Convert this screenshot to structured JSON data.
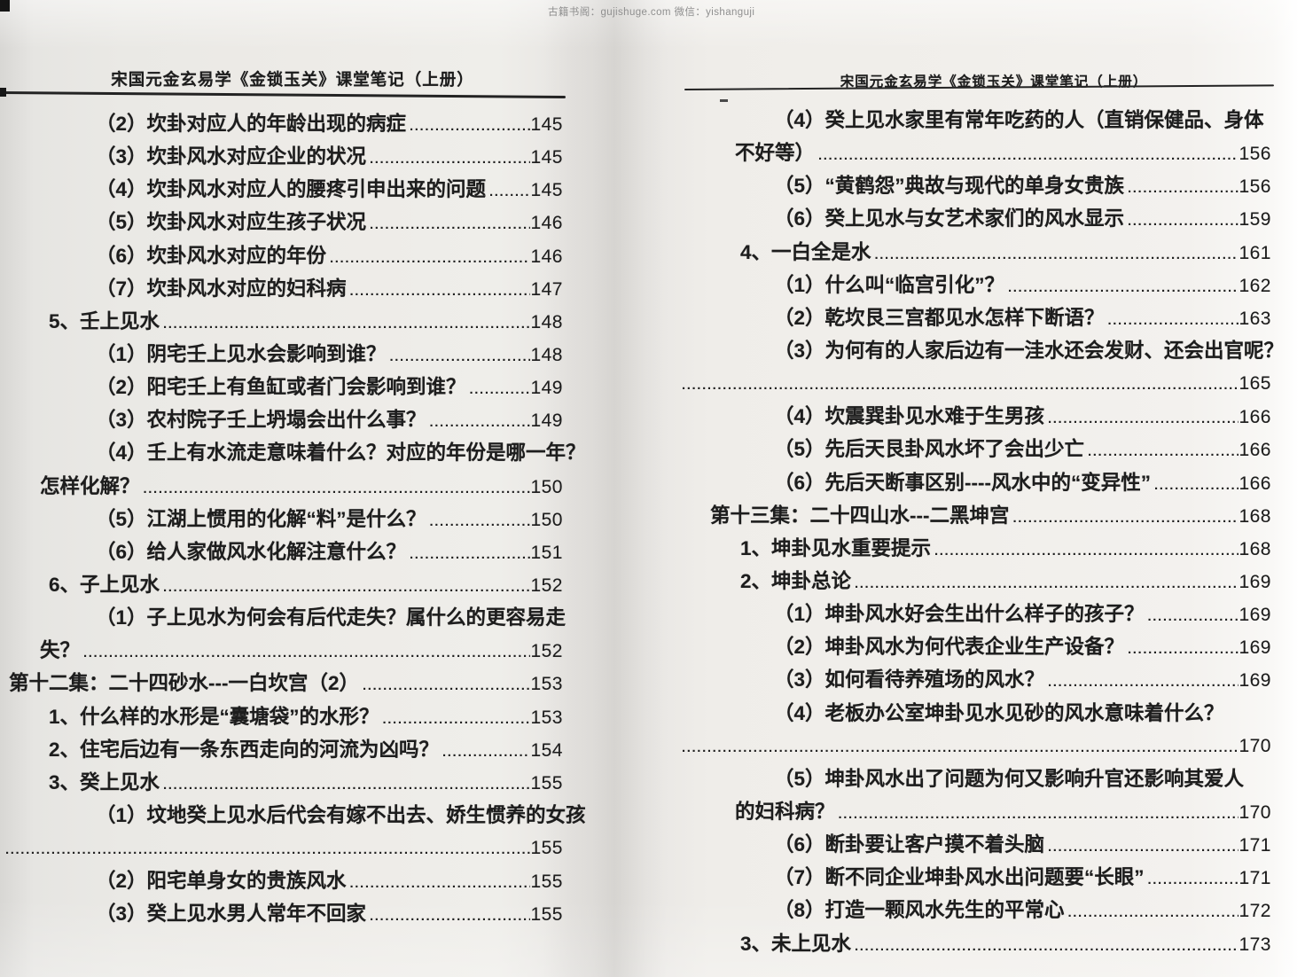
{
  "watermark": "古籍书阁：gujishuge.com 微信：yishanguji",
  "colors": {
    "paper": "#edebe7",
    "ink": "#1d1d1d",
    "rule": "#232323",
    "watermark_gray": "#8f8f8f"
  },
  "left_page": {
    "header": "宋国元金玄易学《金锁玉关》课堂笔记（上册）",
    "entries": [
      {
        "k": "sub",
        "t": "（2）坎卦对应人的年龄出现的病症",
        "p": "145"
      },
      {
        "k": "sub",
        "t": "（3）坎卦风水对应企业的状况",
        "p": "145"
      },
      {
        "k": "sub",
        "t": "（4）坎卦风水对应人的腰疼引申出来的问题",
        "p": "145"
      },
      {
        "k": "sub",
        "t": "（5）坎卦风水对应生孩子状况",
        "p": "146"
      },
      {
        "k": "sub",
        "t": "（6）坎卦风水对应的年份",
        "p": "146"
      },
      {
        "k": "sub",
        "t": "（7）坎卦风水对应的妇科病",
        "p": "147"
      },
      {
        "k": "item",
        "t": "5、壬上见水",
        "p": "148"
      },
      {
        "k": "sub",
        "t": "（1）阴宅壬上见水会影响到谁？",
        "p": "148"
      },
      {
        "k": "sub",
        "t": "（2）阳宅壬上有鱼缸或者门会影响到谁？",
        "p": "149"
      },
      {
        "k": "sub",
        "t": "（3）农村院子壬上坍塌会出什么事？",
        "p": "149"
      },
      {
        "k": "subw",
        "t": "（4）壬上有水流走意味着什么？对应的年份是哪一年？",
        "p": ""
      },
      {
        "k": "wrap",
        "t": "怎样化解？",
        "p": "150"
      },
      {
        "k": "sub",
        "t": "（5）江湖上惯用的化解“料”是什么？",
        "p": "150"
      },
      {
        "k": "sub",
        "t": "（6）给人家做风水化解注意什么？",
        "p": "151"
      },
      {
        "k": "item",
        "t": "6、子上见水",
        "p": "152"
      },
      {
        "k": "subw",
        "t": "（1）子上见水为何会有后代走失？属什么的更容易走",
        "p": ""
      },
      {
        "k": "wrap",
        "t": "失？",
        "p": "152"
      },
      {
        "k": "chapter",
        "t": "第十二集：二十四砂水---一白坎宫（2）",
        "p": "153"
      },
      {
        "k": "item",
        "t": "1、什么样的水形是“囊塘袋”的水形？",
        "p": "153"
      },
      {
        "k": "item",
        "t": "2、住宅后边有一条东西走向的河流为凶吗？",
        "p": "154"
      },
      {
        "k": "item",
        "t": "3、癸上见水",
        "p": "155"
      },
      {
        "k": "subw",
        "t": "（1）坟地癸上见水后代会有嫁不出去、娇生惯养的女孩",
        "p": ""
      },
      {
        "k": "dots",
        "t": "",
        "p": "155"
      },
      {
        "k": "sub",
        "t": "（2）阳宅单身女的贵族风水",
        "p": "155"
      },
      {
        "k": "sub",
        "t": "（3）癸上见水男人常年不回家",
        "p": "155"
      }
    ]
  },
  "right_page": {
    "header": "宋国元金玄易学《金锁玉关》课堂笔记（上册）",
    "entries": [
      {
        "k": "subw",
        "t": "（4）癸上见水家里有常年吃药的人（直销保健品、身体",
        "p": ""
      },
      {
        "k": "wrap",
        "t": "不好等）",
        "p": "156"
      },
      {
        "k": "sub",
        "t": "（5）“黄鹤怨”典故与现代的单身女贵族",
        "p": "156"
      },
      {
        "k": "sub",
        "t": "（6）癸上见水与女艺术家们的风水显示",
        "p": "159"
      },
      {
        "k": "item",
        "t": "4、一白全是水",
        "p": "161"
      },
      {
        "k": "sub",
        "t": "（1）什么叫“临宫引化”？",
        "p": "162"
      },
      {
        "k": "sub",
        "t": "（2）乾坎艮三宫都见水怎样下断语？",
        "p": "163"
      },
      {
        "k": "subw",
        "t": "（3）为何有的人家后边有一洼水还会发财、还会出官呢？",
        "p": ""
      },
      {
        "k": "dots",
        "t": "",
        "p": "165"
      },
      {
        "k": "sub",
        "t": "（4）坎震巽卦见水难于生男孩",
        "p": "166"
      },
      {
        "k": "sub",
        "t": "（5）先后天艮卦风水坏了会出少亡",
        "p": "166"
      },
      {
        "k": "sub",
        "t": "（6）先后天断事区别----风水中的“变异性”",
        "p": "166"
      },
      {
        "k": "chapter",
        "t": "第十三集：二十四山水---二黑坤宫",
        "p": "168"
      },
      {
        "k": "item",
        "t": "1、坤卦见水重要提示",
        "p": "168"
      },
      {
        "k": "item",
        "t": "2、坤卦总论",
        "p": "169"
      },
      {
        "k": "sub",
        "t": "（1）坤卦风水好会生出什么样子的孩子？",
        "p": "169"
      },
      {
        "k": "sub",
        "t": "（2）坤卦风水为何代表企业生产设备？",
        "p": "169"
      },
      {
        "k": "sub",
        "t": "（3）如何看待养殖场的风水？",
        "p": "169"
      },
      {
        "k": "subw",
        "t": "（4）老板办公室坤卦见水见砂的风水意味着什么？",
        "p": ""
      },
      {
        "k": "dots",
        "t": "",
        "p": "170"
      },
      {
        "k": "subw",
        "t": "（5）坤卦风水出了问题为何又影响升官还影响其爱人",
        "p": ""
      },
      {
        "k": "wrap",
        "t": "的妇科病？",
        "p": "170"
      },
      {
        "k": "sub",
        "t": "（6）断卦要让客户摸不着头脑",
        "p": "171"
      },
      {
        "k": "sub",
        "t": "（7）断不同企业坤卦风水出问题要“长眼”",
        "p": "171"
      },
      {
        "k": "sub",
        "t": "（8）打造一颗风水先生的平常心",
        "p": "172"
      },
      {
        "k": "item",
        "t": "3、未上见水",
        "p": "173"
      }
    ]
  }
}
